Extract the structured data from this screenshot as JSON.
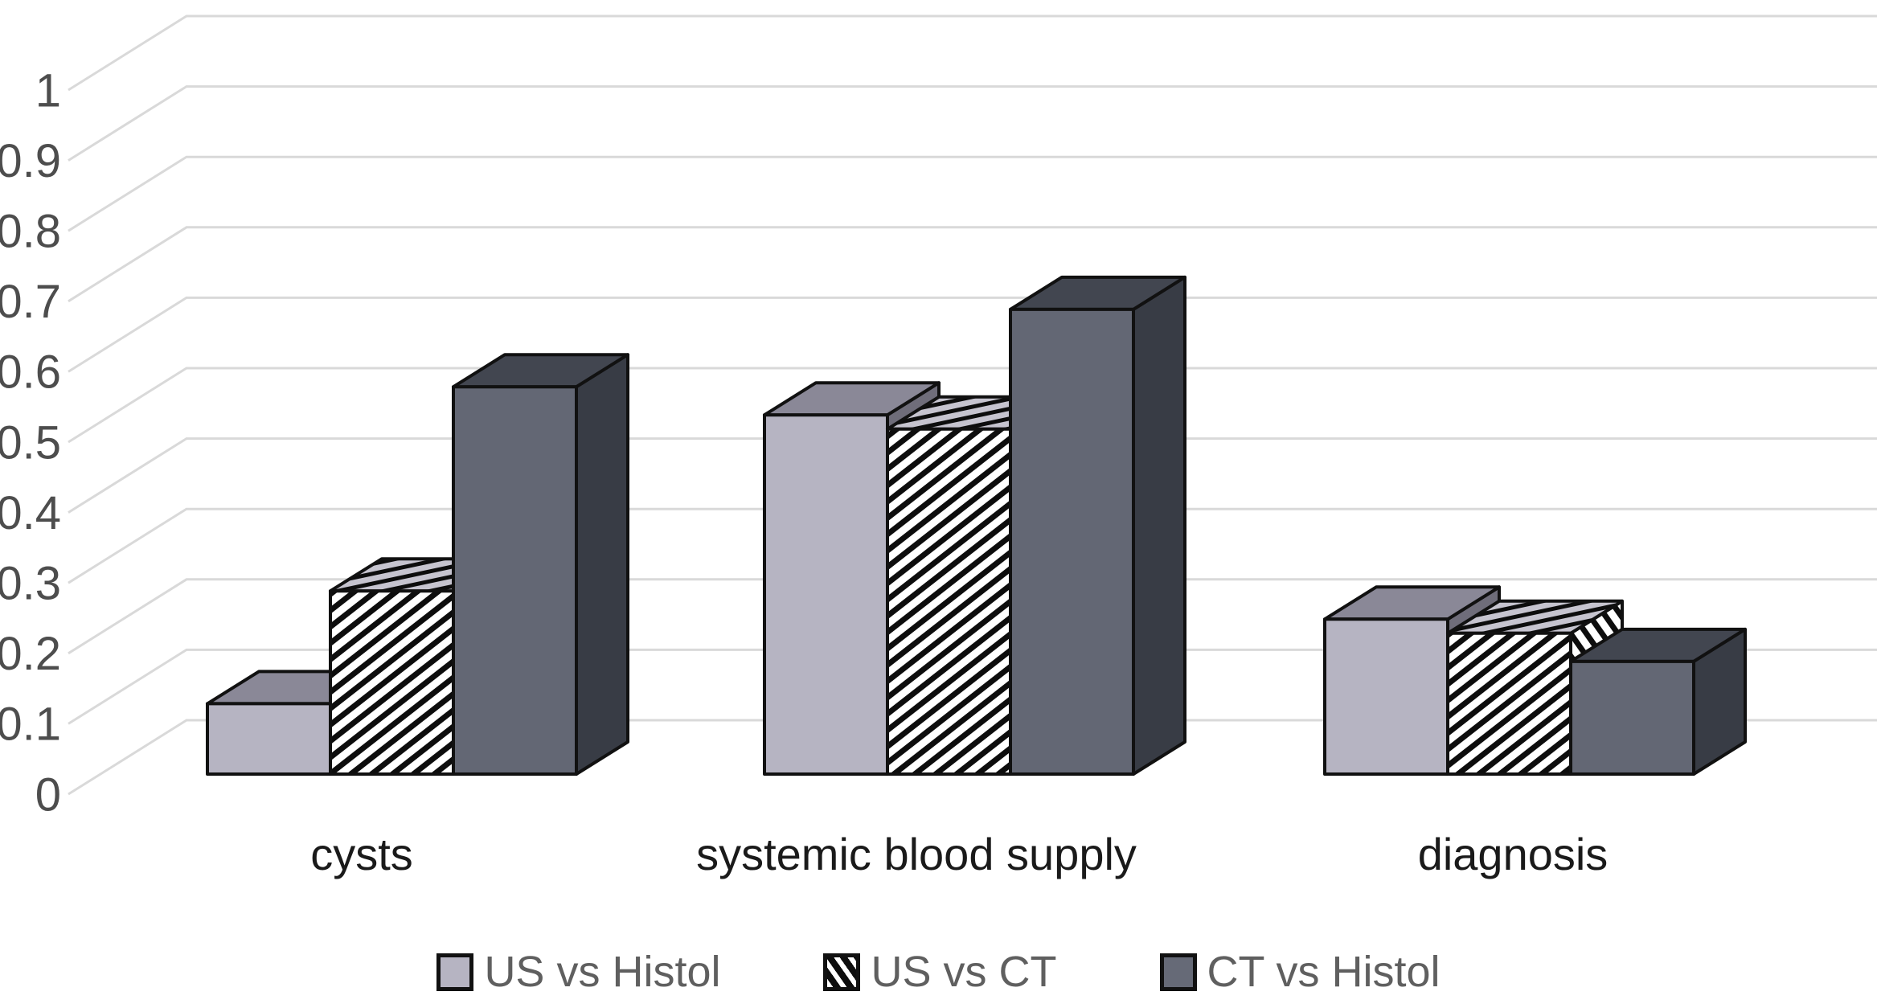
{
  "chart_data": {
    "type": "bar",
    "projection": "3d-oblique",
    "title": "",
    "categories": [
      "cysts",
      "systemic blood supply",
      "diagnosis"
    ],
    "series": [
      {
        "name": "US vs Histol",
        "style": "solid-light",
        "values": [
          0.1,
          0.51,
          0.22
        ]
      },
      {
        "name": "US vs CT",
        "style": "hatched",
        "values": [
          0.26,
          0.49,
          0.2
        ]
      },
      {
        "name": "CT vs Histol",
        "style": "solid-dark",
        "values": [
          0.55,
          0.66,
          0.16
        ]
      }
    ],
    "xlabel": "",
    "ylabel": "",
    "ylim": [
      0,
      1
    ],
    "yticks": [
      "0",
      "0.1",
      "0.2",
      "0.3",
      "0.4",
      "0.5",
      "0.6",
      "0.7",
      "0.8",
      "0.9",
      "1"
    ],
    "grid": true,
    "legend_position": "bottom"
  },
  "colors": {
    "gridline": "#d9d9d9",
    "outline": "#111111",
    "light_front": "#b6b4c2",
    "light_top": "#8a8897",
    "light_side": "#6f6d7a",
    "dark_front": "#636774",
    "dark_top": "#424650",
    "dark_side": "#383c45",
    "hatch_top_bg": "#c6c4cf",
    "hatch_stripe": "#0d0d0d",
    "legend_light_swatch": "#b6b4c2",
    "legend_dark_swatch": "#666a77",
    "axis_text": "#4d4d4d",
    "category_text": "#1a1a1a",
    "legend_text": "#5f5f5f"
  }
}
